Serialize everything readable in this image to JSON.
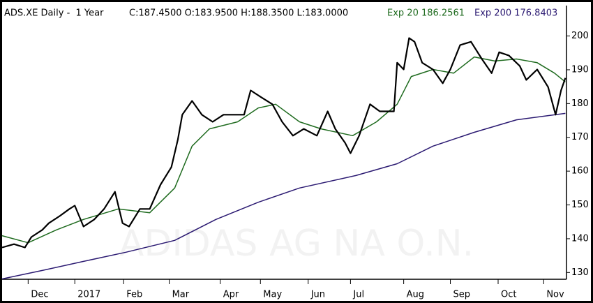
{
  "chart_data": {
    "type": "line",
    "title": "ADS.XE Daily -  1 Year",
    "subtitle": "C:187.4500 O:183.9500 H:188.3500 L:183.0000",
    "watermark": "ADIDAS AG NA O.N.",
    "xlim": [
      0,
      52
    ],
    "ylim": [
      128,
      209
    ],
    "yticks": [
      130,
      140,
      150,
      160,
      170,
      180,
      190,
      200
    ],
    "xticks": [
      {
        "value": 2.4,
        "label": "Dec"
      },
      {
        "value": 6.7,
        "label": "2017"
      },
      {
        "value": 11.2,
        "label": "Feb"
      },
      {
        "value": 15.4,
        "label": "Mar"
      },
      {
        "value": 20.1,
        "label": "Apr"
      },
      {
        "value": 23.8,
        "label": "May"
      },
      {
        "value": 28.2,
        "label": "Jun"
      },
      {
        "value": 32.1,
        "label": "Jul"
      },
      {
        "value": 37.0,
        "label": "Aug"
      },
      {
        "value": 41.3,
        "label": "Sep"
      },
      {
        "value": 45.7,
        "label": "Oct"
      },
      {
        "value": 49.9,
        "label": "Nov"
      }
    ],
    "series": [
      {
        "color": "#000000",
        "x": [
          0,
          1.1,
          2.1,
          2.7,
          3.7,
          4.3,
          5.3,
          6.2,
          6.7,
          7.5,
          8.5,
          9.4,
          10.4,
          11.1,
          11.7,
          12.7,
          13.6,
          14.6,
          15.6,
          16.2,
          16.6,
          17.5,
          18.4,
          19.4,
          20.4,
          21.3,
          22.3,
          22.9,
          23.9,
          24.9,
          25.8,
          26.8,
          27.8,
          29.0,
          30.0,
          30.7,
          31.6,
          32.1,
          32.9,
          33.9,
          34.8,
          36.1,
          36.4,
          37.0,
          37.5,
          38.0,
          38.7,
          39.7,
          40.6,
          41.3,
          42.2,
          43.2,
          44.2,
          45.1,
          45.8,
          46.7,
          47.7,
          48.3,
          49.3,
          50.3,
          51.0,
          51.5,
          51.9
        ],
        "values": [
          137.4,
          138.4,
          137.4,
          140.5,
          142.6,
          144.6,
          146.7,
          148.8,
          149.8,
          143.6,
          145.7,
          148.8,
          153.9,
          144.6,
          143.6,
          148.8,
          148.8,
          156.0,
          161.2,
          169.4,
          176.7,
          180.8,
          176.7,
          174.6,
          176.7,
          176.7,
          176.7,
          183.9,
          181.8,
          179.8,
          174.6,
          170.5,
          172.5,
          170.5,
          177.7,
          172.5,
          168.4,
          165.3,
          170.5,
          179.8,
          177.7,
          177.7,
          192.1,
          190.1,
          199.4,
          198.3,
          192.1,
          190.1,
          186.0,
          190.1,
          197.3,
          198.3,
          193.2,
          189.0,
          195.2,
          194.2,
          191.1,
          187.0,
          190.1,
          184.9,
          176.7,
          183.9,
          187.6
        ]
      },
      {
        "name": "Exp 20 186.2561",
        "color": "#1f6b1f",
        "x": [
          0,
          2.4,
          5.0,
          7.5,
          10.7,
          13.6,
          15.9,
          17.5,
          19.1,
          21.7,
          23.6,
          25.2,
          27.4,
          29.4,
          32.3,
          34.5,
          36.4,
          37.7,
          39.7,
          41.6,
          43.5,
          45.4,
          47.4,
          49.3,
          50.9,
          51.9
        ],
        "values": [
          140.9,
          138.8,
          142.6,
          145.7,
          148.8,
          147.7,
          155.0,
          167.4,
          172.5,
          174.6,
          178.7,
          179.8,
          174.6,
          172.5,
          170.5,
          174.6,
          179.8,
          188.0,
          190.1,
          189.0,
          193.8,
          192.6,
          193.2,
          192.1,
          189.0,
          186.4
        ]
      },
      {
        "name": "Exp 200 176.8403",
        "color": "#2b1a72",
        "x": [
          0,
          3.7,
          7.5,
          11.4,
          15.9,
          19.7,
          23.6,
          27.4,
          32.6,
          36.4,
          39.7,
          43.5,
          47.4,
          51.9
        ],
        "values": [
          128.1,
          130.6,
          133.3,
          136.0,
          139.5,
          145.7,
          150.8,
          155.0,
          158.7,
          162.2,
          167.4,
          171.5,
          175.2,
          177.1
        ]
      }
    ]
  }
}
